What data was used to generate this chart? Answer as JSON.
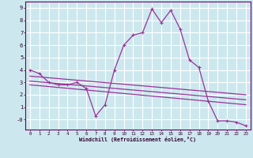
{
  "xlabel": "Windchill (Refroidissement éolien,°C)",
  "background_color": "#cce8ee",
  "grid_color": "#ffffff",
  "line_color": "#993399",
  "spine_color": "#660066",
  "xlim": [
    -0.5,
    23.5
  ],
  "ylim": [
    -0.8,
    9.5
  ],
  "yticks": [
    0,
    1,
    2,
    3,
    4,
    5,
    6,
    7,
    8,
    9
  ],
  "ytick_labels": [
    "-0",
    "1",
    "2",
    "3",
    "4",
    "5",
    "6",
    "7",
    "8",
    "9"
  ],
  "xticks": [
    0,
    1,
    2,
    3,
    4,
    5,
    6,
    7,
    8,
    9,
    10,
    11,
    12,
    13,
    14,
    15,
    16,
    17,
    18,
    19,
    20,
    21,
    22,
    23
  ],
  "series1_x": [
    0,
    1,
    2,
    3,
    4,
    5,
    6,
    7,
    8,
    9,
    10,
    11,
    12,
    13,
    14,
    15,
    16,
    17,
    18,
    19,
    20,
    21,
    22,
    23
  ],
  "series1_y": [
    4.0,
    3.7,
    3.0,
    2.8,
    2.8,
    3.0,
    2.5,
    0.3,
    1.2,
    4.0,
    6.0,
    6.8,
    7.0,
    8.9,
    7.8,
    8.8,
    7.3,
    4.8,
    4.2,
    1.5,
    -0.1,
    -0.1,
    -0.2,
    -0.5
  ],
  "series2_x": [
    0,
    23
  ],
  "series2_y": [
    3.5,
    2.0
  ],
  "series3_x": [
    0,
    23
  ],
  "series3_y": [
    3.1,
    1.6
  ],
  "series4_x": [
    0,
    23
  ],
  "series4_y": [
    2.8,
    1.2
  ]
}
